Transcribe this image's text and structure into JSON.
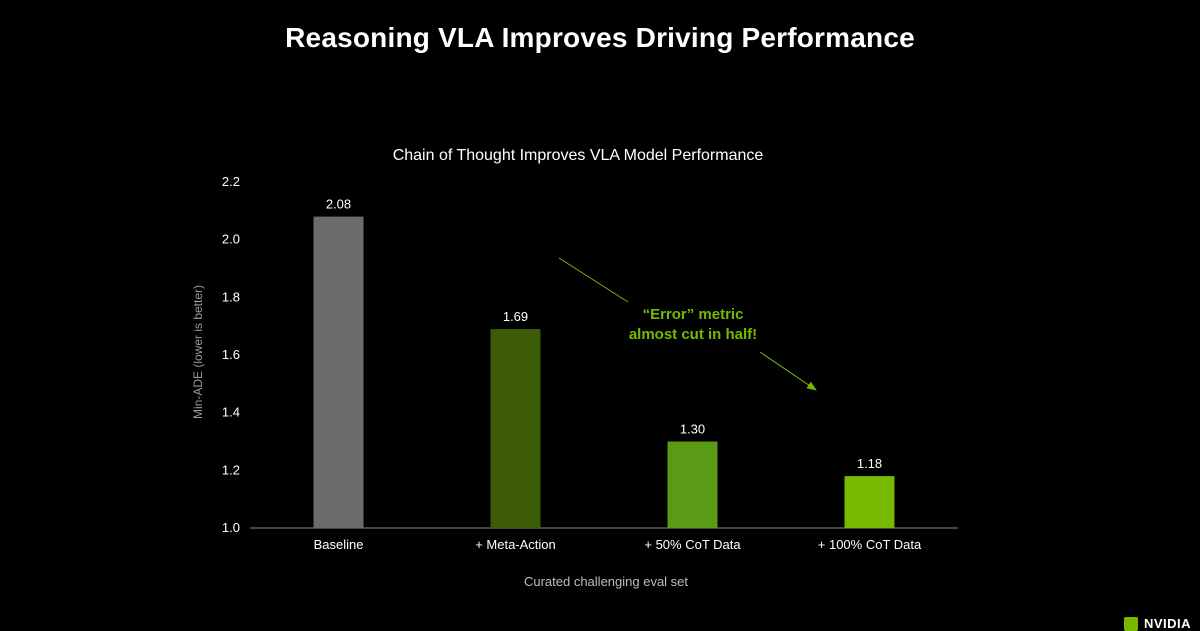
{
  "slide": {
    "title": "Reasoning VLA Improves Driving Performance",
    "logo_text": "NVIDIA"
  },
  "colors": {
    "background": "#000000",
    "axis": "#8a8a8a",
    "text": "#ffffff",
    "muted_text": "#bdbdbd",
    "annotation": "#76b900",
    "bars": [
      "#6b6b6b",
      "#3c5c0a",
      "#5a9a14",
      "#76b900"
    ]
  },
  "chart_data": {
    "type": "bar",
    "title": "Chain of Thought Improves VLA Model Performance",
    "xlabel": "Curated challenging eval set",
    "ylabel": "Min-ADE (lower is better)",
    "categories": [
      "Baseline",
      "+ Meta-Action",
      "+ 50% CoT Data",
      "+ 100% CoT Data"
    ],
    "values": [
      2.08,
      1.69,
      1.3,
      1.18
    ],
    "data_labels": [
      "2.08",
      "1.69",
      "1.30",
      "1.18"
    ],
    "ylim": [
      1.0,
      2.2
    ],
    "yticks": [
      1.0,
      1.2,
      1.4,
      1.6,
      1.8,
      2.0,
      2.2
    ],
    "ytick_labels": [
      "1.0",
      "1.2",
      "1.4",
      "1.6",
      "1.8",
      "2.0",
      "2.2"
    ],
    "grid": false,
    "annotation": {
      "lines": [
        "“Error” metric",
        "almost cut in half!"
      ]
    }
  }
}
